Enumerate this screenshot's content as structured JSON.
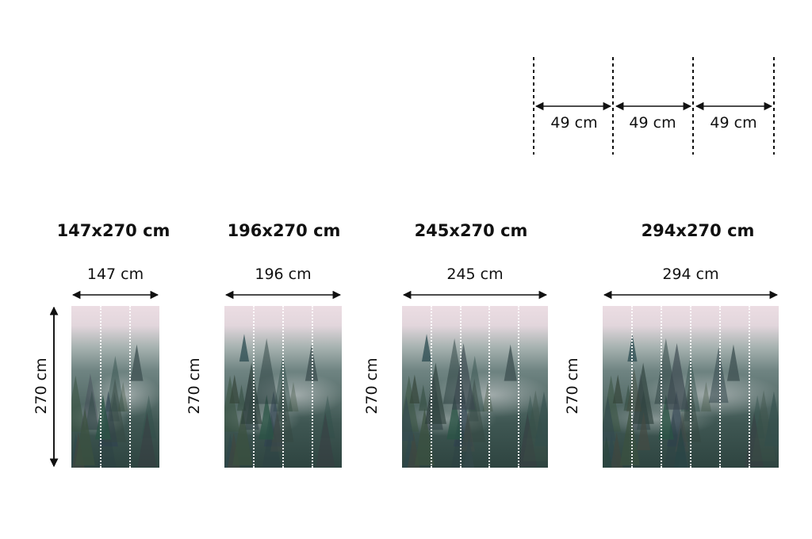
{
  "panel_width_label": "49 cm",
  "panel_count_top": 3,
  "colors": {
    "text": "#111111",
    "sky": "#ecdde3",
    "forest": "#2e4440"
  },
  "image_subject": "misty-forest-photo",
  "sizes": [
    {
      "title": "147x270 cm",
      "width_label": "147 cm",
      "height_label": "270 cm",
      "panels": 3
    },
    {
      "title": "196x270 cm",
      "width_label": "196 cm",
      "height_label": "270 cm",
      "panels": 4
    },
    {
      "title": "245x270 cm",
      "width_label": "245 cm",
      "height_label": "270 cm",
      "panels": 5
    },
    {
      "title": "294x270 cm",
      "width_label": "294 cm",
      "height_label": "270 cm",
      "panels": 6
    }
  ]
}
